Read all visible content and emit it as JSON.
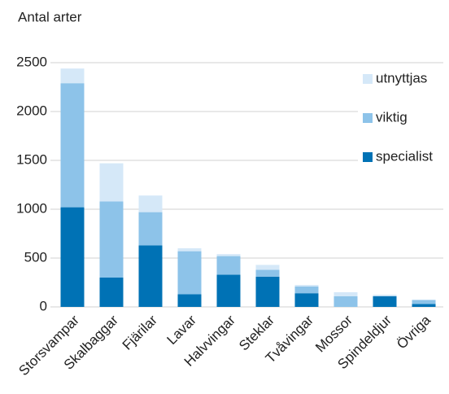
{
  "chart_data": {
    "type": "stacked_bar",
    "y_label": "Antal arter",
    "categories": [
      "Storsvampar",
      "Skalbaggar",
      "Fjärilar",
      "Lavar",
      "Halvvingar",
      "Steklar",
      "Tvåvingar",
      "Mossor",
      "Spindeldjur",
      "Övriga"
    ],
    "series": [
      {
        "name": "specialist",
        "color": "#0072b5",
        "values": [
          1020,
          300,
          630,
          130,
          330,
          310,
          140,
          0,
          110,
          30
        ]
      },
      {
        "name": "viktig",
        "color": "#8dc3e9",
        "values": [
          1270,
          780,
          340,
          440,
          190,
          70,
          70,
          110,
          0,
          40
        ]
      },
      {
        "name": "utnyttjas",
        "color": "#d5e8f8",
        "values": [
          150,
          390,
          170,
          30,
          20,
          50,
          15,
          40,
          15,
          5
        ]
      }
    ],
    "ylim": [
      0,
      2500
    ],
    "yticks": [
      0,
      500,
      1000,
      1500,
      2000,
      2500
    ],
    "grid": true,
    "legend": "right"
  }
}
